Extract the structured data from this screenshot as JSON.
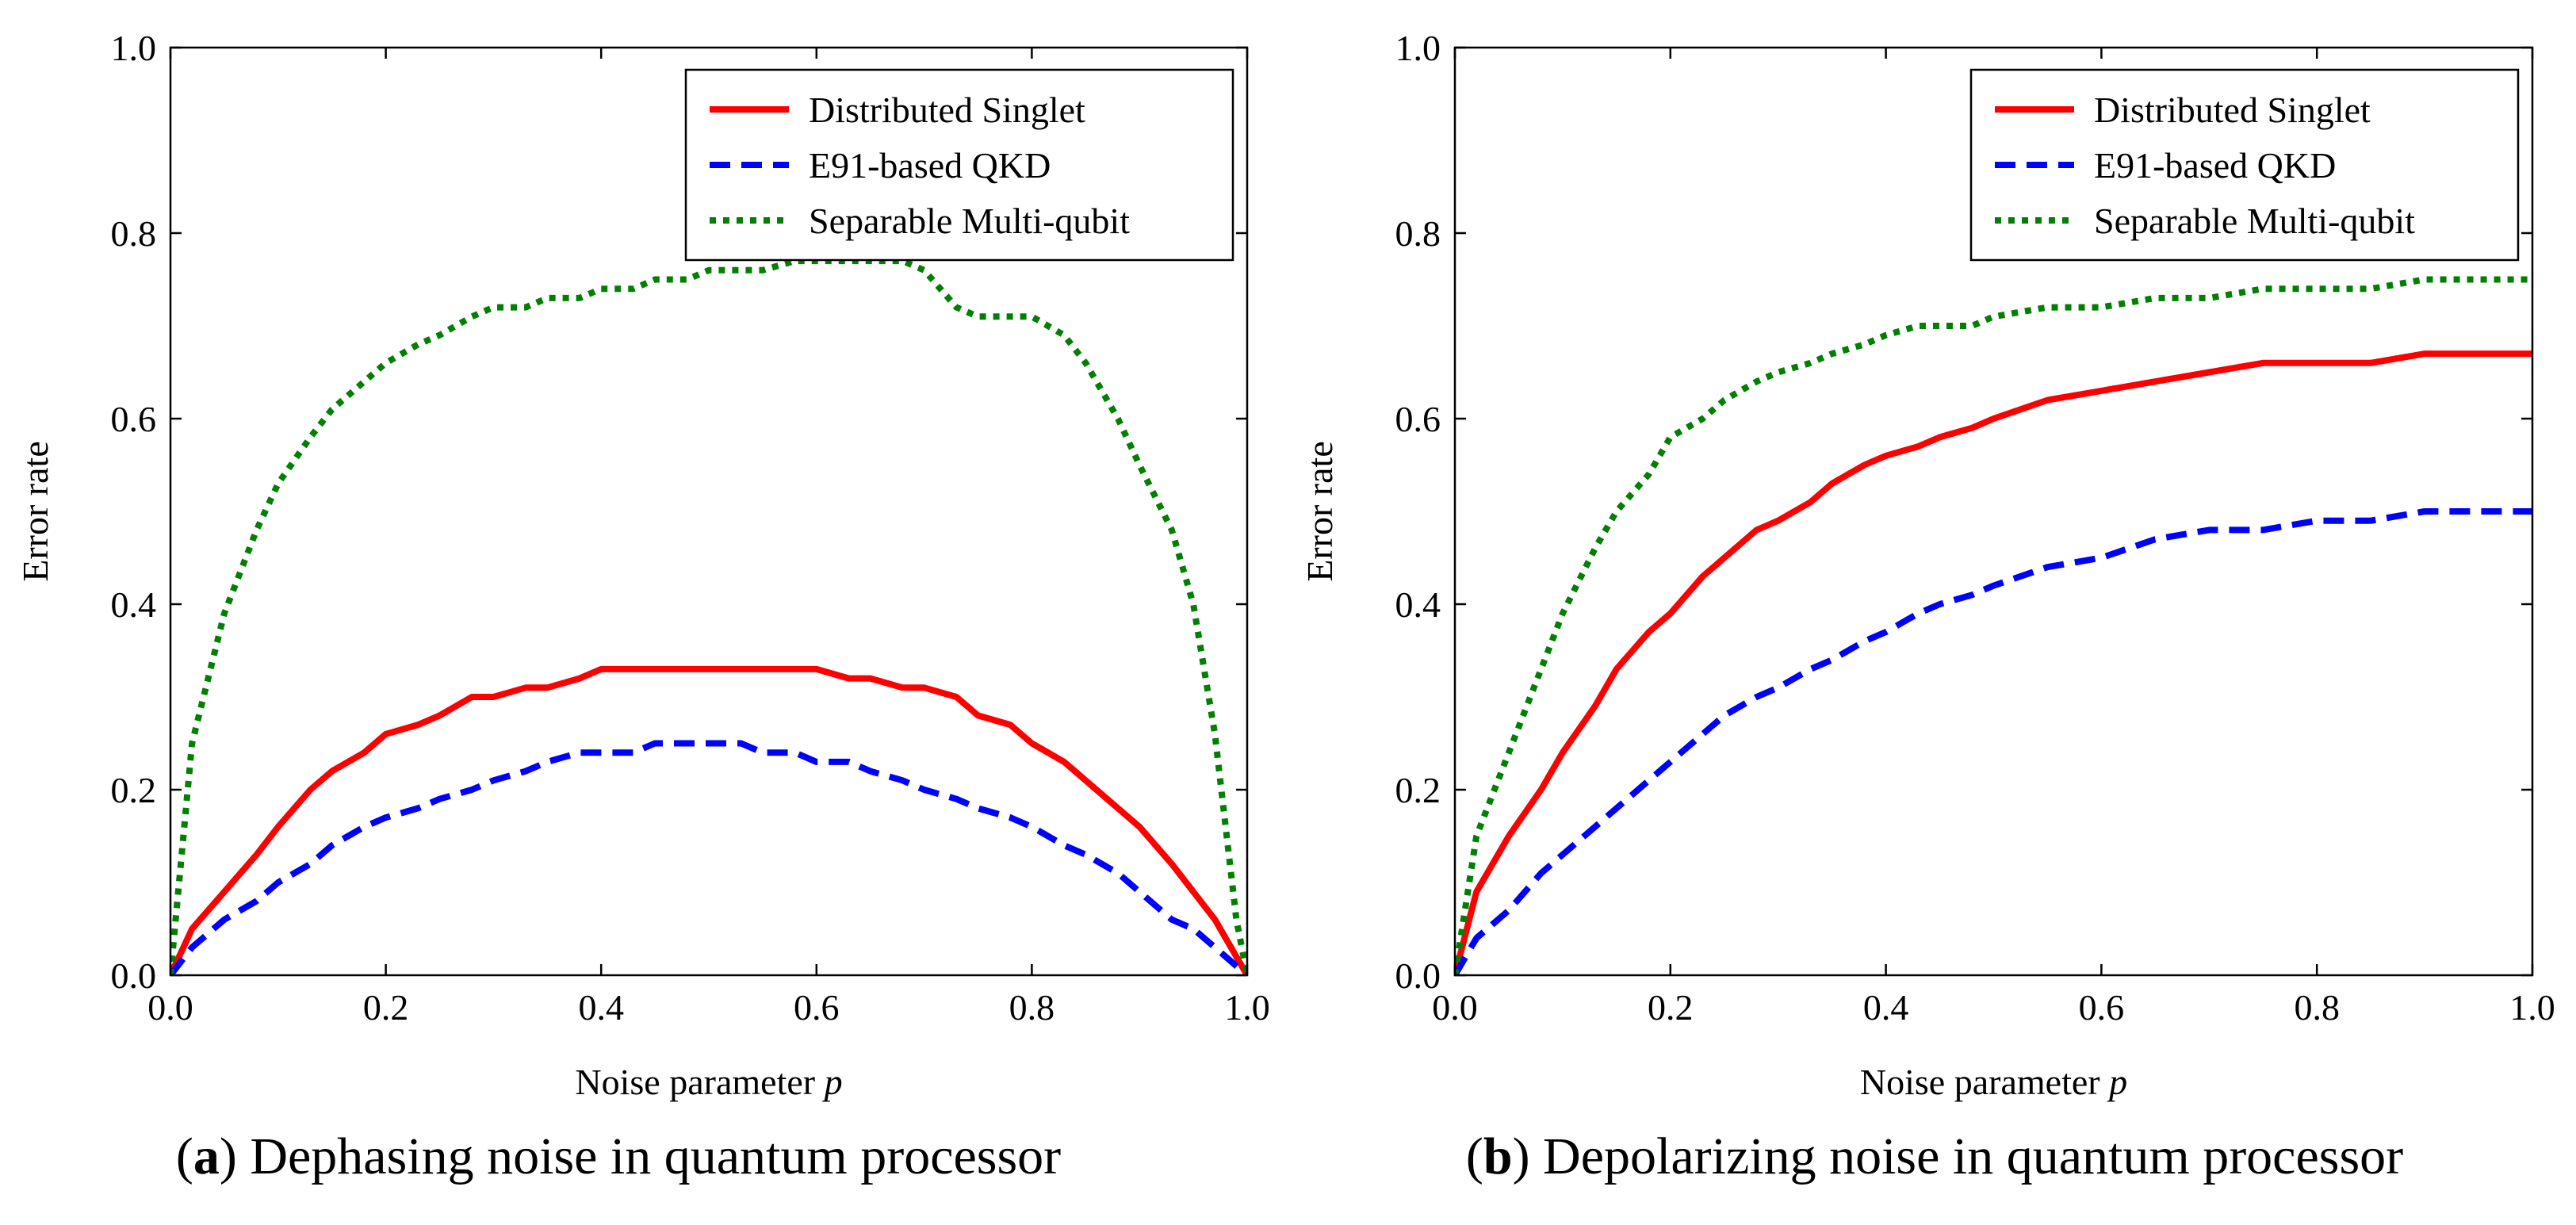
{
  "figure": {
    "captions": [
      {
        "letter": "a",
        "text": "Dephasing noise in quantum processor"
      },
      {
        "letter": "b",
        "text": "Depolarizing noise in quantum processor"
      }
    ]
  },
  "colors": {
    "distributed_singlet": "#ff0000",
    "e91_qkd": "#0000ff",
    "separable_multi_qubit": "#008000"
  },
  "chart_data": [
    {
      "type": "line",
      "xlabel": "Noise parameter p",
      "ylabel": "Error rate",
      "xlim": [
        0,
        1
      ],
      "ylim": [
        0,
        1
      ],
      "x_ticks": [
        "0.0",
        "0.2",
        "0.4",
        "0.6",
        "0.8",
        "1.0"
      ],
      "y_ticks": [
        "0.0",
        "0.2",
        "0.4",
        "0.6",
        "0.8",
        "1.0"
      ],
      "grid": false,
      "legend_position": "top-right",
      "x": [
        0.0,
        0.02,
        0.05,
        0.08,
        0.1,
        0.13,
        0.15,
        0.18,
        0.2,
        0.23,
        0.25,
        0.28,
        0.3,
        0.33,
        0.35,
        0.38,
        0.4,
        0.43,
        0.45,
        0.48,
        0.5,
        0.53,
        0.55,
        0.58,
        0.6,
        0.63,
        0.65,
        0.68,
        0.7,
        0.73,
        0.75,
        0.78,
        0.8,
        0.83,
        0.85,
        0.88,
        0.9,
        0.93,
        0.95,
        0.97,
        0.99,
        1.0
      ],
      "series": [
        {
          "name": "Distributed Singlet",
          "style": "solid",
          "values": [
            0.0,
            0.05,
            0.09,
            0.13,
            0.16,
            0.2,
            0.22,
            0.24,
            0.26,
            0.27,
            0.28,
            0.3,
            0.3,
            0.31,
            0.31,
            0.32,
            0.33,
            0.33,
            0.33,
            0.33,
            0.33,
            0.33,
            0.33,
            0.33,
            0.33,
            0.32,
            0.32,
            0.31,
            0.31,
            0.3,
            0.28,
            0.27,
            0.25,
            0.23,
            0.21,
            0.18,
            0.16,
            0.12,
            0.09,
            0.06,
            0.02,
            0.0
          ]
        },
        {
          "name": "E91-based QKD",
          "style": "dashed",
          "values": [
            0.0,
            0.03,
            0.06,
            0.08,
            0.1,
            0.12,
            0.14,
            0.16,
            0.17,
            0.18,
            0.19,
            0.2,
            0.21,
            0.22,
            0.23,
            0.24,
            0.24,
            0.24,
            0.25,
            0.25,
            0.25,
            0.25,
            0.24,
            0.24,
            0.23,
            0.23,
            0.22,
            0.21,
            0.2,
            0.19,
            0.18,
            0.17,
            0.16,
            0.14,
            0.13,
            0.11,
            0.09,
            0.06,
            0.05,
            0.03,
            0.01,
            0.0
          ]
        },
        {
          "name": "Separable Multi-qubit",
          "style": "dotted",
          "values": [
            0.0,
            0.25,
            0.39,
            0.48,
            0.53,
            0.58,
            0.61,
            0.64,
            0.66,
            0.68,
            0.69,
            0.71,
            0.72,
            0.72,
            0.73,
            0.73,
            0.74,
            0.74,
            0.75,
            0.75,
            0.76,
            0.76,
            0.76,
            0.77,
            0.77,
            0.77,
            0.77,
            0.77,
            0.76,
            0.72,
            0.71,
            0.71,
            0.71,
            0.69,
            0.66,
            0.6,
            0.55,
            0.48,
            0.4,
            0.26,
            0.06,
            0.0
          ]
        }
      ]
    },
    {
      "type": "line",
      "xlabel": "Noise parameter p",
      "ylabel": "Error rate",
      "xlim": [
        0,
        1
      ],
      "ylim": [
        0,
        1
      ],
      "x_ticks": [
        "0.0",
        "0.2",
        "0.4",
        "0.6",
        "0.8",
        "1.0"
      ],
      "y_ticks": [
        "0.0",
        "0.2",
        "0.4",
        "0.6",
        "0.8",
        "1.0"
      ],
      "grid": false,
      "legend_position": "top-right",
      "x": [
        0.0,
        0.02,
        0.05,
        0.08,
        0.1,
        0.13,
        0.15,
        0.18,
        0.2,
        0.23,
        0.25,
        0.28,
        0.3,
        0.33,
        0.35,
        0.38,
        0.4,
        0.43,
        0.45,
        0.48,
        0.5,
        0.55,
        0.6,
        0.65,
        0.7,
        0.75,
        0.8,
        0.85,
        0.9,
        0.95,
        1.0
      ],
      "series": [
        {
          "name": "Distributed Singlet",
          "style": "solid",
          "values": [
            0.0,
            0.09,
            0.15,
            0.2,
            0.24,
            0.29,
            0.33,
            0.37,
            0.39,
            0.43,
            0.45,
            0.48,
            0.49,
            0.51,
            0.53,
            0.55,
            0.56,
            0.57,
            0.58,
            0.59,
            0.6,
            0.62,
            0.63,
            0.64,
            0.65,
            0.66,
            0.66,
            0.66,
            0.67,
            0.67,
            0.67
          ]
        },
        {
          "name": "E91-based QKD",
          "style": "dashed",
          "values": [
            0.0,
            0.04,
            0.07,
            0.11,
            0.13,
            0.16,
            0.18,
            0.21,
            0.23,
            0.26,
            0.28,
            0.3,
            0.31,
            0.33,
            0.34,
            0.36,
            0.37,
            0.39,
            0.4,
            0.41,
            0.42,
            0.44,
            0.45,
            0.47,
            0.48,
            0.48,
            0.49,
            0.49,
            0.5,
            0.5,
            0.5
          ]
        },
        {
          "name": "Separable Multi-qubit",
          "style": "dotted",
          "values": [
            0.0,
            0.15,
            0.24,
            0.33,
            0.39,
            0.46,
            0.5,
            0.54,
            0.58,
            0.6,
            0.62,
            0.64,
            0.65,
            0.66,
            0.67,
            0.68,
            0.69,
            0.7,
            0.7,
            0.7,
            0.71,
            0.72,
            0.72,
            0.73,
            0.73,
            0.74,
            0.74,
            0.74,
            0.75,
            0.75,
            0.75
          ]
        }
      ]
    }
  ]
}
